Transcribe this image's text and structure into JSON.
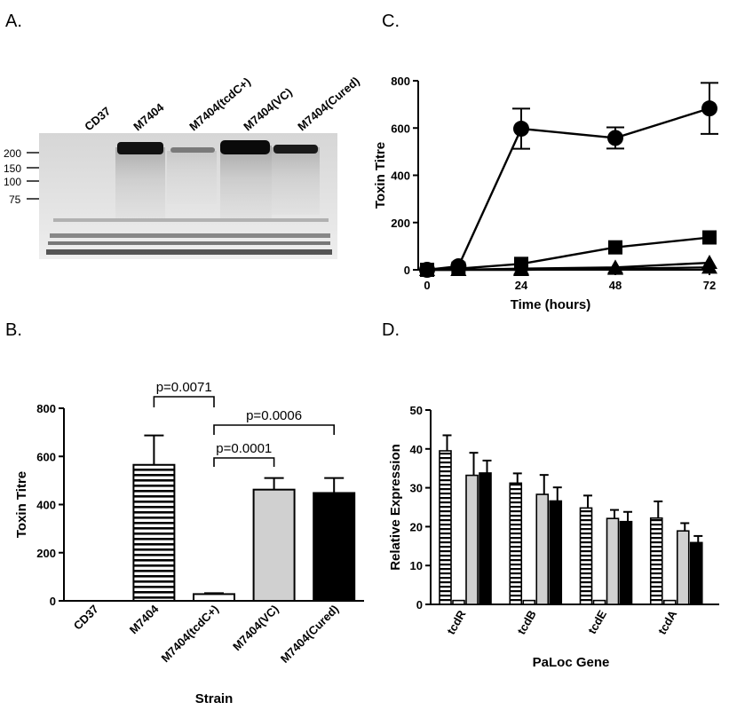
{
  "panels": {
    "a": {
      "letter": "A.",
      "lanes": [
        "CD37",
        "M7404",
        "M7404(tcdC+)",
        "M7404(VC)",
        "M7404(Cured)"
      ],
      "markers": [
        "200",
        "150",
        "100",
        "75"
      ]
    },
    "b": {
      "letter": "B."
    },
    "c": {
      "letter": "C."
    },
    "d": {
      "letter": "D."
    }
  },
  "chart_data": [
    {
      "panel": "B",
      "type": "bar",
      "xlabel": "Strain",
      "ylabel": "Toxin Titre",
      "ylim": [
        0,
        800
      ],
      "yticks": [
        0,
        200,
        400,
        600,
        800
      ],
      "categories": [
        "CD37",
        "M7404",
        "M7404(tcdC+)",
        "M7404(VC)",
        "M7404(Cured)"
      ],
      "values": [
        0,
        565,
        28,
        462,
        448
      ],
      "errors": [
        0,
        122,
        4,
        48,
        62
      ],
      "fills": [
        "none",
        "striped",
        "white",
        "#d0d0d0",
        "#000000"
      ],
      "annotations": [
        {
          "text": "p=0.0071",
          "from": 1,
          "to": 2
        },
        {
          "text": "p=0.0006",
          "from": 2,
          "to": 4
        },
        {
          "text": "p=0.0001",
          "from": 2,
          "to": 3
        }
      ]
    },
    {
      "panel": "C",
      "type": "line",
      "xlabel": "Time (hours)",
      "ylabel": "Toxin  Titre",
      "xlim": [
        0,
        72
      ],
      "ylim": [
        0,
        800
      ],
      "xticks": [
        0,
        24,
        48,
        72
      ],
      "yticks": [
        0,
        200,
        400,
        600,
        800
      ],
      "series": [
        {
          "marker": "circle",
          "x": [
            0,
            8,
            24,
            48,
            72
          ],
          "y": [
            0,
            15,
            597,
            558,
            683
          ],
          "err": [
            0,
            0,
            85,
            45,
            108
          ]
        },
        {
          "marker": "square",
          "x": [
            0,
            8,
            24,
            48,
            72
          ],
          "y": [
            0,
            5,
            25,
            95,
            137
          ],
          "err": [
            0,
            0,
            0,
            0,
            0
          ]
        },
        {
          "marker": "triangle",
          "x": [
            0,
            8,
            24,
            48,
            72
          ],
          "y": [
            0,
            0,
            5,
            10,
            30
          ],
          "err": [
            0,
            0,
            0,
            0,
            0
          ]
        },
        {
          "marker": "triangle",
          "x": [
            0,
            8,
            24,
            48,
            72
          ],
          "y": [
            0,
            0,
            0,
            5,
            10
          ],
          "err": [
            0,
            0,
            0,
            0,
            0
          ]
        }
      ]
    },
    {
      "panel": "D",
      "type": "bar",
      "xlabel": "PaLoc  Gene",
      "ylabel": "Relative Expression",
      "ylim": [
        0,
        50
      ],
      "yticks": [
        0,
        10,
        20,
        30,
        40,
        50
      ],
      "categories": [
        "tcdR",
        "tcdB",
        "tcdE",
        "tcdA"
      ],
      "series": [
        {
          "fill": "striped",
          "values": [
            39.5,
            31.2,
            24.8,
            22.2
          ],
          "err": [
            4.0,
            2.5,
            3.2,
            4.3
          ]
        },
        {
          "fill": "white",
          "values": [
            1.0,
            1.0,
            1.0,
            1.0
          ],
          "err": [
            0,
            0,
            0,
            0
          ]
        },
        {
          "fill": "#d0d0d0",
          "values": [
            33.2,
            28.3,
            22.1,
            18.9
          ],
          "err": [
            5.8,
            5.0,
            2.2,
            2.0
          ]
        },
        {
          "fill": "#000000",
          "values": [
            33.8,
            26.6,
            21.3,
            15.9
          ],
          "err": [
            3.2,
            3.5,
            2.5,
            1.7
          ]
        }
      ]
    }
  ]
}
